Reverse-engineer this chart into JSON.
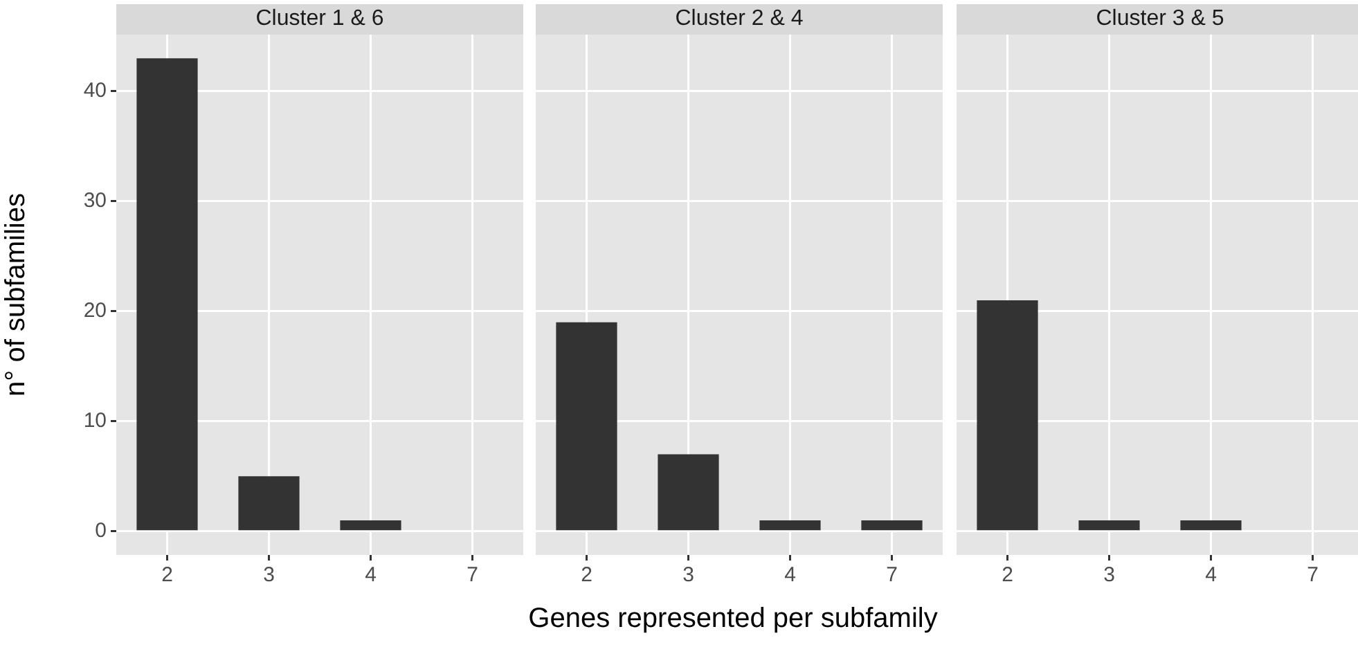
{
  "chart_data": [
    {
      "type": "bar",
      "title": "Cluster 1 & 6",
      "ylabel": "n° of subfamilies",
      "categories": [
        "2",
        "3",
        "4",
        "7"
      ],
      "values": [
        43,
        5,
        1,
        null
      ],
      "color": "#333333",
      "ylim": [
        -2.15,
        45.15
      ],
      "yticks": [
        0,
        10,
        20,
        30,
        40
      ],
      "grid": true,
      "legend": false
    },
    {
      "type": "bar",
      "title": "Cluster 2 & 4",
      "xlabel": "Genes represented per subfamily",
      "categories": [
        "2",
        "3",
        "4",
        "7"
      ],
      "values": [
        19,
        7,
        1,
        1
      ],
      "color": "#333333",
      "ylim": [
        -2.15,
        45.15
      ],
      "yticks": [
        0,
        10,
        20,
        30,
        40
      ],
      "grid": true,
      "legend": false,
      "tick_labels": "x"
    },
    {
      "type": "bar",
      "title": "Cluster 3 & 5",
      "categories": [
        "2",
        "3",
        "4",
        "7"
      ],
      "values": [
        21,
        1,
        1,
        null
      ],
      "color": "#333333",
      "ylim": [
        -2.15,
        45.15
      ],
      "yticks": [
        0,
        10,
        20,
        30,
        40
      ],
      "grid": true,
      "legend": false,
      "tick_labels": "x"
    }
  ]
}
